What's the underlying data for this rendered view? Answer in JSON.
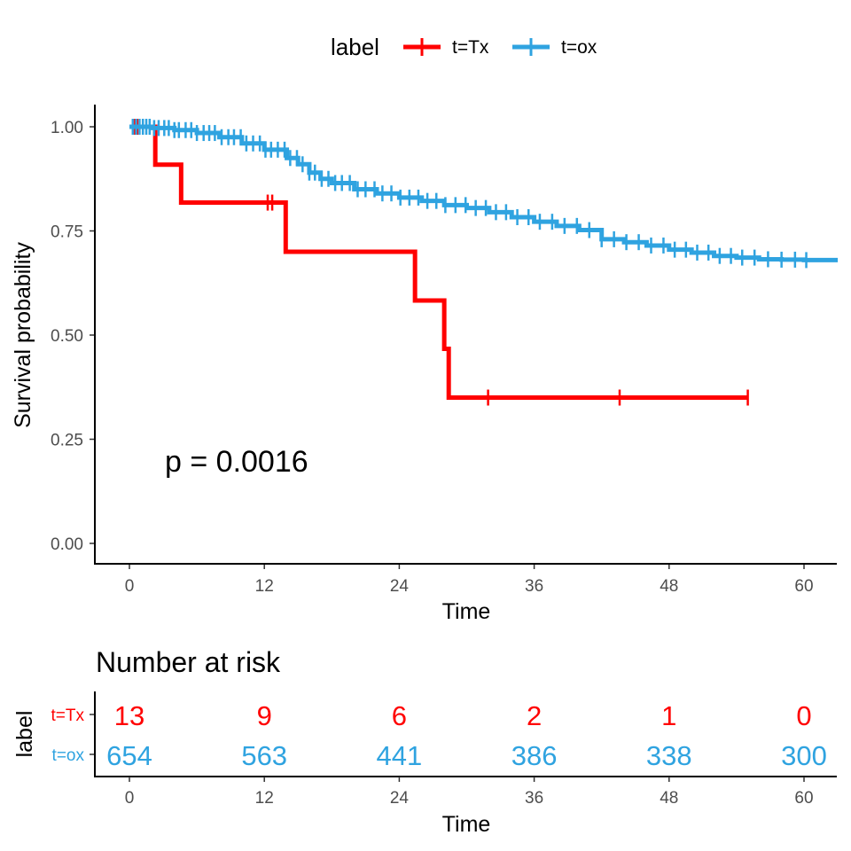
{
  "chart_data": {
    "type": "line",
    "subtype": "kaplan-meier",
    "xlabel": "Time",
    "ylabel": "Survival probability",
    "xlim": [
      -3,
      63
    ],
    "ylim": [
      -0.05,
      1.05
    ],
    "x_ticks": [
      0,
      12,
      24,
      36,
      48,
      60
    ],
    "y_ticks": [
      0.0,
      0.25,
      0.5,
      0.75,
      1.0
    ],
    "y_tick_labels": [
      "0.00",
      "0.25",
      "0.50",
      "0.75",
      "1.00"
    ],
    "grid": false,
    "legend": {
      "title": "label",
      "placement": "top",
      "entries": [
        "t=Tx",
        "t=ox"
      ]
    },
    "annotation": "p = 0.0016",
    "series": [
      {
        "name": "t=Tx",
        "color": "#ff0000",
        "steps": [
          [
            0,
            1.0
          ],
          [
            2.3,
            0.909
          ],
          [
            4.6,
            0.818
          ],
          [
            13.9,
            0.7
          ],
          [
            25.4,
            0.583
          ],
          [
            28.0,
            0.467
          ],
          [
            28.4,
            0.35
          ],
          [
            55,
            0.35
          ]
        ],
        "censor_times": [
          0.5,
          0.7,
          12.3,
          12.7,
          31.9,
          43.6,
          55
        ]
      },
      {
        "name": "t=ox",
        "color": "#2fa3e0",
        "steps": [
          [
            0,
            1.0
          ],
          [
            2,
            0.997
          ],
          [
            4,
            0.992
          ],
          [
            6,
            0.985
          ],
          [
            8,
            0.975
          ],
          [
            10,
            0.96
          ],
          [
            12,
            0.945
          ],
          [
            14,
            0.925
          ],
          [
            15,
            0.91
          ],
          [
            16,
            0.89
          ],
          [
            17,
            0.875
          ],
          [
            18,
            0.865
          ],
          [
            20,
            0.85
          ],
          [
            22,
            0.84
          ],
          [
            24,
            0.83
          ],
          [
            26,
            0.822
          ],
          [
            28,
            0.812
          ],
          [
            30,
            0.805
          ],
          [
            32,
            0.795
          ],
          [
            34,
            0.783
          ],
          [
            36,
            0.772
          ],
          [
            38,
            0.762
          ],
          [
            40,
            0.752
          ],
          [
            42,
            0.73
          ],
          [
            44,
            0.723
          ],
          [
            46,
            0.715
          ],
          [
            48,
            0.705
          ],
          [
            50,
            0.698
          ],
          [
            52,
            0.69
          ],
          [
            54,
            0.686
          ],
          [
            56,
            0.682
          ],
          [
            58,
            0.681
          ],
          [
            60,
            0.68
          ],
          [
            63,
            0.68
          ]
        ],
        "censor_times": [
          0.3,
          0.6,
          0.9,
          1.2,
          1.5,
          1.8,
          2.2,
          2.6,
          3.1,
          3.5,
          4.0,
          4.4,
          5.0,
          5.5,
          6.0,
          6.6,
          7.1,
          7.6,
          8.2,
          8.8,
          9.3,
          9.9,
          10.4,
          11.0,
          11.6,
          12.1,
          12.6,
          13.2,
          13.8,
          14.3,
          14.9,
          15.4,
          16.0,
          16.5,
          17.1,
          17.7,
          18.3,
          18.9,
          19.6,
          20.3,
          21.0,
          21.8,
          22.5,
          23.3,
          24.1,
          24.9,
          25.7,
          26.5,
          27.3,
          28.1,
          29.0,
          29.9,
          30.8,
          31.7,
          32.6,
          33.5,
          34.5,
          35.5,
          36.5,
          37.6,
          38.7,
          39.8,
          40.9,
          42.0,
          43.1,
          44.2,
          45.3,
          46.4,
          47.5,
          48.5,
          49.5,
          50.5,
          51.5,
          52.5,
          53.5,
          54.5,
          55.6,
          56.8,
          58.0,
          59.2,
          60.2
        ]
      }
    ],
    "risk_table": {
      "title": "Number at risk",
      "ylabel": "label",
      "xlabel": "Time",
      "times": [
        0,
        12,
        24,
        36,
        48,
        60
      ],
      "rows": [
        {
          "label": "t=Tx",
          "color": "#ff0000",
          "values": [
            "13",
            "9",
            "6",
            "2",
            "1",
            "0"
          ]
        },
        {
          "label": "t=ox",
          "color": "#2fa3e0",
          "values": [
            "654",
            "563",
            "441",
            "386",
            "338",
            "300"
          ]
        }
      ]
    }
  }
}
